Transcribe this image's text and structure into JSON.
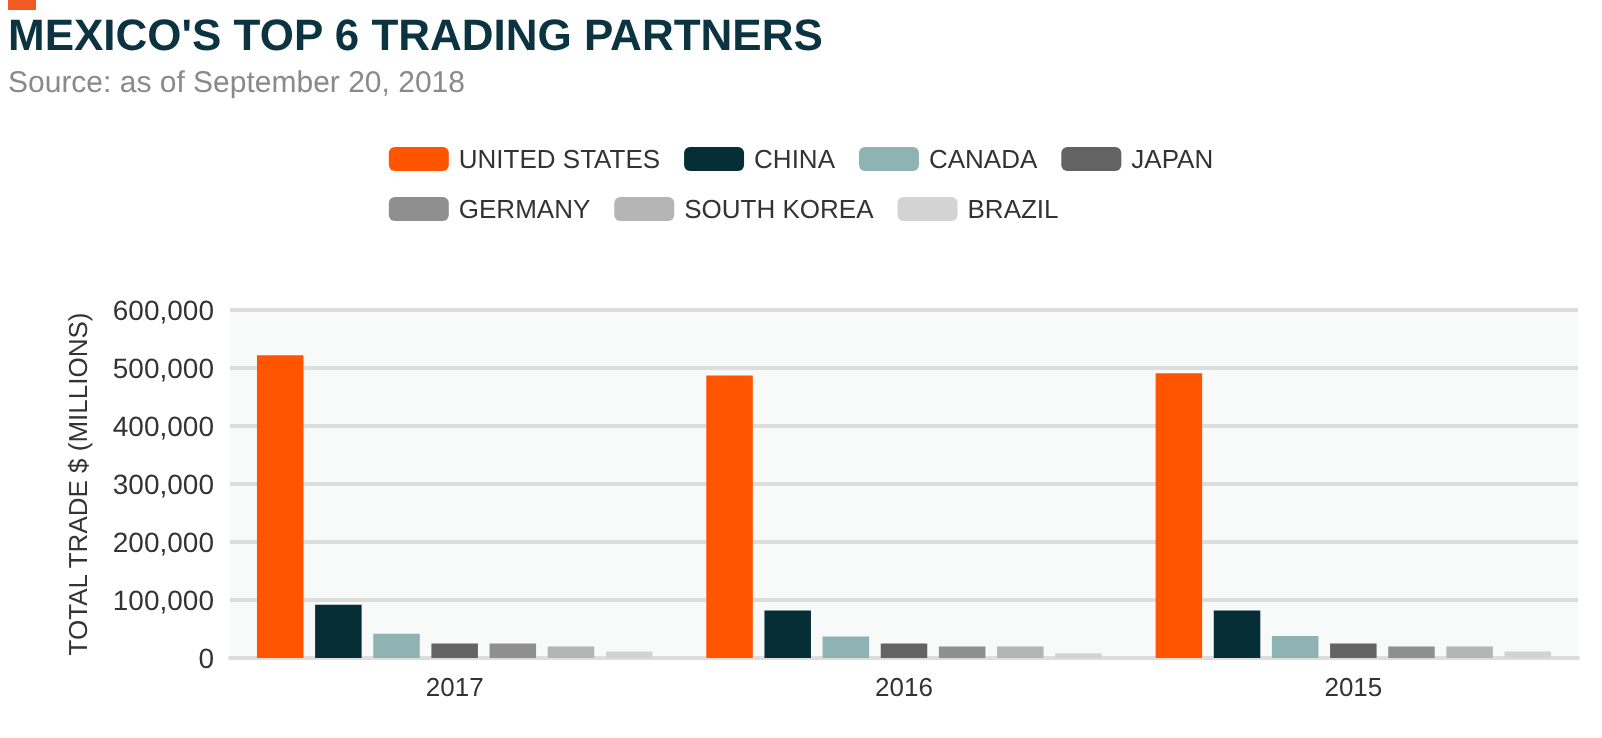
{
  "chart_data": {
    "type": "bar",
    "title": "MEXICO'S TOP 6 TRADING PARTNERS",
    "subtitle": "Source: as of September 20, 2018",
    "ylabel": "TOTAL TRADE $ (MILLIONS)",
    "categories": [
      "2017",
      "2016",
      "2015"
    ],
    "series": [
      {
        "name": "UNITED STATES",
        "color": "#ff5500",
        "values": [
          522000,
          487000,
          491000
        ]
      },
      {
        "name": "CHINA",
        "color": "#052e36",
        "values": [
          92000,
          82000,
          82000
        ]
      },
      {
        "name": "CANADA",
        "color": "#8fb2b2",
        "values": [
          42000,
          37000,
          38000
        ]
      },
      {
        "name": "JAPAN",
        "color": "#636363",
        "values": [
          25000,
          25000,
          25000
        ]
      },
      {
        "name": "GERMANY",
        "color": "#8f8f8f",
        "values": [
          25000,
          20000,
          20000
        ]
      },
      {
        "name": "SOUTH KOREA",
        "color": "#b5b5b5",
        "values": [
          20000,
          20000,
          20000
        ]
      },
      {
        "name": "BRAZIL",
        "color": "#d3d3d3",
        "values": [
          11000,
          8000,
          11000
        ]
      }
    ],
    "ylim": [
      0,
      600000
    ],
    "yticks": [
      0,
      {
        "value": 100000,
        "label": "100,000"
      },
      {
        "value": 200000,
        "label": "200,000"
      },
      {
        "value": 300000,
        "label": "300,000"
      },
      {
        "value": 400000,
        "label": "400,000"
      },
      {
        "value": 500000,
        "label": "500,000"
      },
      {
        "value": 600000,
        "label": "600,000"
      }
    ],
    "grid": "y",
    "legend": "top"
  }
}
